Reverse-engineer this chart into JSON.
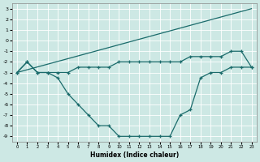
{
  "xlabel": "Humidex (Indice chaleur)",
  "bg_color": "#cde8e4",
  "line_color": "#1a6b6b",
  "xlim": [
    -0.5,
    23.5
  ],
  "ylim": [
    -9.5,
    3.5
  ],
  "xticks": [
    0,
    1,
    2,
    3,
    4,
    5,
    6,
    7,
    8,
    9,
    10,
    11,
    12,
    13,
    14,
    15,
    16,
    17,
    18,
    19,
    20,
    21,
    22,
    23
  ],
  "yticks": [
    3,
    2,
    1,
    0,
    -1,
    -2,
    -3,
    -4,
    -5,
    -6,
    -7,
    -8,
    -9
  ],
  "curve_top": {
    "x": [
      0,
      23
    ],
    "y": [
      -3,
      3
    ]
  },
  "curve_mid": {
    "x": [
      0,
      1,
      2,
      3,
      4,
      5,
      6,
      7,
      8,
      9,
      10,
      11,
      12,
      13,
      14,
      15,
      16,
      17,
      18,
      19,
      20,
      21,
      22,
      23
    ],
    "y": [
      -3,
      -2,
      -3,
      -3,
      -3,
      -3,
      -2.5,
      -2.5,
      -2.5,
      -2.5,
      -2,
      -2,
      -2,
      -2,
      -2,
      -2,
      -2,
      -1.5,
      -1.5,
      -1.5,
      -1.5,
      -1,
      -1,
      -2.5
    ]
  },
  "curve_bot": {
    "x": [
      0,
      1,
      2,
      3,
      4,
      5,
      6,
      7,
      8,
      9,
      10,
      11,
      12,
      13,
      14,
      15,
      16,
      17,
      18,
      19,
      20,
      21,
      22,
      23
    ],
    "y": [
      -3,
      -2,
      -3,
      -3,
      -3.5,
      -5,
      -6,
      -7,
      -8,
      -8,
      -9,
      -9,
      -9,
      -9,
      -9,
      -9,
      -7,
      -6.5,
      -3.5,
      -3,
      -3,
      -2.5,
      -2.5,
      -2.5
    ]
  }
}
